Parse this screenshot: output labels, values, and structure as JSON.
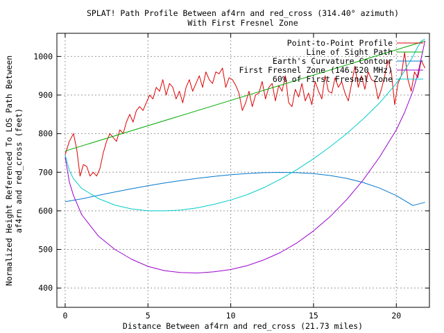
{
  "chart_data": {
    "type": "line",
    "title_line1": "SPLAT! Path Profile Between af4rn and red_cross (314.40° azimuth)",
    "title_line2": "With First Fresnel Zone",
    "xlabel": "Distance Between af4rn and red_cross (21.73 miles)",
    "ylabel_line1": "Normalized Height Referenced To LOS Path Between",
    "ylabel_line2": "af4rn and red_cross (feet)",
    "xlim": [
      -0.5,
      22.0
    ],
    "ylim": [
      350,
      1060
    ],
    "xticks": [
      0,
      5,
      10,
      15,
      20
    ],
    "yticks": [
      400,
      500,
      600,
      700,
      800,
      900,
      1000
    ],
    "grid": true,
    "legend_position": "top-right",
    "series": [
      {
        "name": "Point-to-Point Profile",
        "color": "#dd0000",
        "x": [
          0,
          0.25,
          0.5,
          0.7,
          0.9,
          1.1,
          1.3,
          1.5,
          1.7,
          1.9,
          2.1,
          2.3,
          2.5,
          2.7,
          2.9,
          3.1,
          3.3,
          3.5,
          3.7,
          3.9,
          4.1,
          4.3,
          4.5,
          4.7,
          4.9,
          5.1,
          5.3,
          5.5,
          5.7,
          5.9,
          6.1,
          6.3,
          6.5,
          6.7,
          6.9,
          7.1,
          7.3,
          7.5,
          7.7,
          7.9,
          8.1,
          8.3,
          8.5,
          8.7,
          8.9,
          9.1,
          9.3,
          9.5,
          9.7,
          9.9,
          10.1,
          10.3,
          10.5,
          10.7,
          10.9,
          11.1,
          11.3,
          11.5,
          11.7,
          11.9,
          12.1,
          12.3,
          12.5,
          12.7,
          12.9,
          13.1,
          13.3,
          13.5,
          13.7,
          13.9,
          14.1,
          14.3,
          14.5,
          14.7,
          14.9,
          15.1,
          15.3,
          15.5,
          15.7,
          15.9,
          16.1,
          16.3,
          16.5,
          16.7,
          16.9,
          17.1,
          17.3,
          17.5,
          17.7,
          17.9,
          18.1,
          18.3,
          18.5,
          18.7,
          18.9,
          19.1,
          19.3,
          19.5,
          19.7,
          19.9,
          20.1,
          20.3,
          20.5,
          20.7,
          20.9,
          21.1,
          21.3,
          21.5,
          21.73
        ],
        "y": [
          745,
          780,
          800,
          760,
          690,
          720,
          715,
          690,
          700,
          690,
          710,
          750,
          780,
          800,
          790,
          780,
          810,
          800,
          830,
          850,
          830,
          860,
          870,
          860,
          880,
          900,
          890,
          920,
          910,
          940,
          900,
          930,
          920,
          890,
          910,
          880,
          920,
          940,
          910,
          930,
          950,
          920,
          960,
          940,
          930,
          960,
          955,
          970,
          920,
          945,
          940,
          925,
          905,
          860,
          880,
          910,
          870,
          900,
          905,
          935,
          890,
          920,
          930,
          885,
          925,
          910,
          950,
          880,
          870,
          915,
          895,
          930,
          885,
          905,
          875,
          935,
          910,
          890,
          950,
          910,
          905,
          945,
          920,
          935,
          905,
          885,
          930,
          975,
          920,
          950,
          915,
          960,
          940,
          935,
          890,
          915,
          950,
          990,
          960,
          875,
          930,
          950,
          1010,
          940,
          910,
          960,
          945,
          990,
          970
        ]
      },
      {
        "name": "Line of Sight Path",
        "color": "#00aa00",
        "x": [
          0,
          21.73
        ],
        "y": [
          755,
          1040
        ]
      },
      {
        "name": "Earth's Curvature Contour",
        "color": "#0077cc",
        "x": [
          0,
          1,
          2,
          3,
          4,
          5,
          6,
          7,
          8,
          9,
          10,
          11,
          12,
          13,
          14,
          15,
          16,
          17,
          18,
          19,
          20,
          21,
          21.73
        ],
        "y": [
          623.5,
          631.1,
          640.2,
          648.9,
          657.2,
          665.0,
          672.1,
          678.6,
          684.4,
          689.4,
          693.5,
          696.7,
          698.8,
          699.6,
          698.9,
          696.4,
          691.6,
          684.1,
          673.4,
          658.8,
          639.5,
          613.8,
          622.0
        ]
      },
      {
        "name": "First Fresnel Zone (146.520 MHz)",
        "color": "#9900cc",
        "x": [
          0,
          0.25,
          0.5,
          1,
          2,
          3,
          4,
          5,
          6,
          7,
          8,
          9,
          10,
          11,
          12,
          13,
          14,
          15,
          16,
          17,
          18,
          19,
          20,
          20.5,
          21,
          21.3,
          21.5,
          21.73
        ],
        "y": [
          740,
          675,
          640,
          590,
          535,
          500,
          475,
          456,
          445,
          440,
          439,
          442,
          448,
          458,
          473,
          492,
          517,
          548,
          585,
          629,
          680,
          740,
          810,
          855,
          910,
          955,
          995,
          1040
        ]
      },
      {
        "name": "60% of First Fresnel Zone",
        "color": "#00cccc",
        "x": [
          0,
          0.25,
          0.5,
          1,
          2,
          3,
          4,
          5,
          6,
          7,
          8,
          9,
          10,
          11,
          12,
          13,
          14,
          15,
          16,
          17,
          18,
          19,
          20,
          20.5,
          21,
          21.3,
          21.5,
          21.73
        ],
        "y": [
          745,
          705,
          683,
          658,
          632,
          615,
          605,
          600,
          600,
          602,
          608,
          617,
          628,
          642,
          660,
          682,
          707,
          735,
          766,
          800,
          838,
          880,
          930,
          963,
          1000,
          1025,
          1040,
          1045
        ]
      }
    ]
  }
}
